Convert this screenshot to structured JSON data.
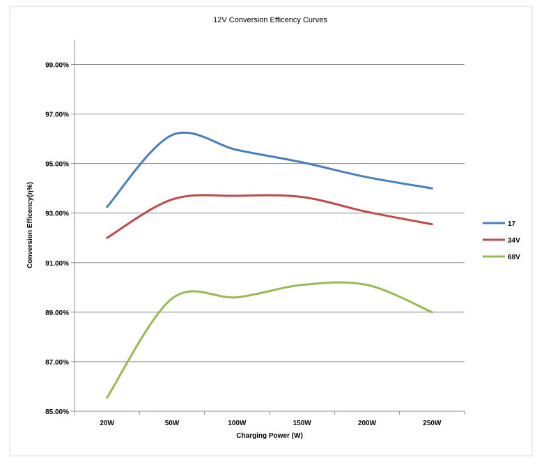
{
  "chart_data": {
    "type": "line",
    "title": "12V  Conversion Efficency Curves",
    "xlabel": "Charging  Power  (W)",
    "ylabel": "Conversion Efficency(η%)",
    "categories": [
      "20W",
      "50W",
      "100W",
      "150W",
      "200W",
      "250W"
    ],
    "ylim": [
      85,
      100
    ],
    "yticks": [
      "85.00%",
      "87.00%",
      "89.00%",
      "91.00%",
      "93.00%",
      "95.00%",
      "97.00%",
      "99.00%"
    ],
    "ytick_values": [
      85,
      87,
      89,
      91,
      93,
      95,
      97,
      99
    ],
    "grid": true,
    "legend": "right",
    "smooth": true,
    "series": [
      {
        "name": "17",
        "color": "#4a7ebb",
        "values": [
          93.25,
          96.15,
          95.55,
          95.05,
          94.45,
          94.0
        ]
      },
      {
        "name": "34V",
        "color": "#be4b48",
        "values": [
          92.0,
          93.55,
          93.7,
          93.65,
          93.05,
          92.55
        ]
      },
      {
        "name": "68V",
        "color": "#98b954",
        "values": [
          85.55,
          89.55,
          89.6,
          90.1,
          90.1,
          89.0
        ]
      }
    ]
  }
}
